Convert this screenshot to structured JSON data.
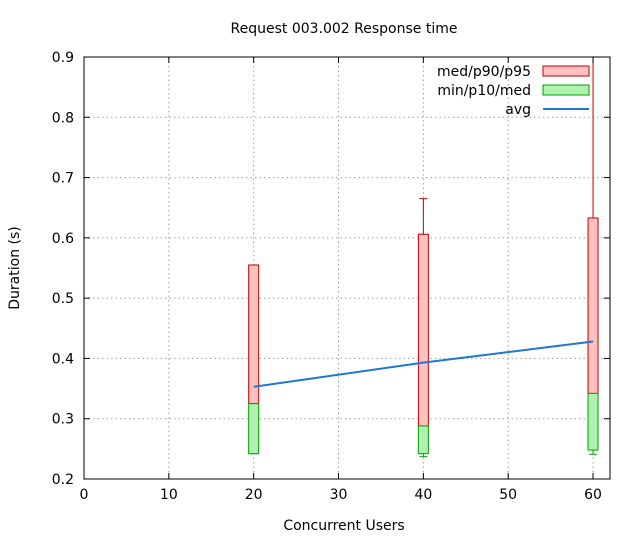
{
  "chart_data": {
    "type": "candlestick",
    "title": "Request 003.002 Response time",
    "xlabel": "Concurrent Users",
    "ylabel": "Duration (s)",
    "xlim": [
      0,
      62
    ],
    "ylim": [
      0.2,
      0.9
    ],
    "x_ticks": [
      0,
      10,
      20,
      30,
      40,
      50,
      60
    ],
    "y_ticks": [
      0.2,
      0.3,
      0.4,
      0.5,
      0.6,
      0.7,
      0.8,
      0.9
    ],
    "x_tick_labels": [
      "0",
      "10",
      "20",
      "30",
      "40",
      "50",
      "60"
    ],
    "y_tick_labels": [
      "0.2",
      "0.3",
      "0.4",
      "0.5",
      "0.6",
      "0.7",
      "0.8",
      "0.9"
    ],
    "grid": true,
    "legend_position": "top-right",
    "legend": [
      {
        "label": "med/p90/p95",
        "color": "#ffc0c0",
        "stroke": "#c00000"
      },
      {
        "label": "min/p10/med",
        "color": "#b0f0b0",
        "stroke": "#00a000"
      },
      {
        "label": "avg",
        "color": "#1e78d2"
      }
    ],
    "points": [
      {
        "x": 20,
        "min": 0.242,
        "p10": 0.242,
        "med": 0.325,
        "p90": 0.555,
        "p95": 0.555,
        "avg": 0.353
      },
      {
        "x": 40,
        "min": 0.237,
        "p10": 0.242,
        "med": 0.288,
        "p90": 0.606,
        "p95": 0.665,
        "avg": 0.393
      },
      {
        "x": 60,
        "min": 0.241,
        "p10": 0.248,
        "med": 0.342,
        "p90": 0.633,
        "p95": 0.9,
        "avg": 0.428
      }
    ]
  }
}
